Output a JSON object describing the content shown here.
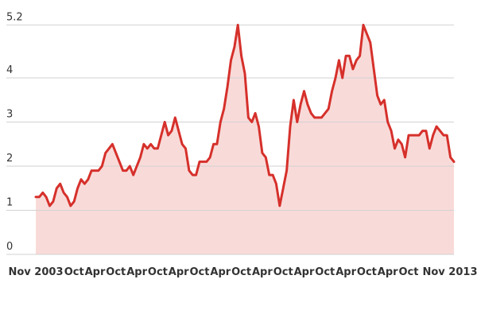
{
  "chart_data": {
    "type": "area",
    "title": "",
    "xlabel": "",
    "ylabel": "",
    "x_start": "Nov 2003",
    "x_end": "Nov 2013",
    "interval": "monthly",
    "ylim": [
      0,
      5.2
    ],
    "grid": true,
    "legend_position": "none",
    "values": [
      1.3,
      1.3,
      1.4,
      1.3,
      1.1,
      1.2,
      1.5,
      1.6,
      1.4,
      1.3,
      1.1,
      1.2,
      1.5,
      1.7,
      1.6,
      1.7,
      1.9,
      1.9,
      1.9,
      2.0,
      2.3,
      2.4,
      2.5,
      2.3,
      2.1,
      1.9,
      1.9,
      2.0,
      1.8,
      2.0,
      2.2,
      2.5,
      2.4,
      2.5,
      2.4,
      2.4,
      2.7,
      3.0,
      2.7,
      2.8,
      3.1,
      2.8,
      2.5,
      2.4,
      1.9,
      1.8,
      1.8,
      2.1,
      2.1,
      2.1,
      2.2,
      2.5,
      2.5,
      3.0,
      3.3,
      3.8,
      4.4,
      4.7,
      5.2,
      4.5,
      4.1,
      3.1,
      3.0,
      3.2,
      2.9,
      2.3,
      2.2,
      1.8,
      1.8,
      1.6,
      1.1,
      1.5,
      1.9,
      2.9,
      3.5,
      3.0,
      3.4,
      3.7,
      3.4,
      3.2,
      3.1,
      3.1,
      3.1,
      3.2,
      3.3,
      3.7,
      4.0,
      4.4,
      4.0,
      4.5,
      4.5,
      4.2,
      4.4,
      4.5,
      5.2,
      5.0,
      4.8,
      4.2,
      3.6,
      3.4,
      3.5,
      3.0,
      2.8,
      2.4,
      2.6,
      2.5,
      2.2,
      2.7,
      2.7,
      2.7,
      2.7,
      2.8,
      2.8,
      2.4,
      2.7,
      2.9,
      2.8,
      2.7,
      2.7,
      2.2,
      2.1
    ],
    "y_ticks": [
      {
        "value": 0,
        "label": "0"
      },
      {
        "value": 1,
        "label": "1"
      },
      {
        "value": 2,
        "label": "2"
      },
      {
        "value": 3,
        "label": "3"
      },
      {
        "value": 4,
        "label": "4"
      },
      {
        "value": 5.2,
        "label": "5.2"
      }
    ],
    "x_ticks": [
      {
        "month_index": 0,
        "label": "Nov 2003"
      },
      {
        "month_index": 11,
        "label": "Oct"
      },
      {
        "month_index": 17,
        "label": "Apr"
      },
      {
        "month_index": 23,
        "label": "Oct"
      },
      {
        "month_index": 29,
        "label": "Apr"
      },
      {
        "month_index": 35,
        "label": "Oct"
      },
      {
        "month_index": 41,
        "label": "Apr"
      },
      {
        "month_index": 47,
        "label": "Oct"
      },
      {
        "month_index": 53,
        "label": "Apr"
      },
      {
        "month_index": 59,
        "label": "Oct"
      },
      {
        "month_index": 65,
        "label": "Apr"
      },
      {
        "month_index": 71,
        "label": "Oct"
      },
      {
        "month_index": 77,
        "label": "Apr"
      },
      {
        "month_index": 83,
        "label": "Oct"
      },
      {
        "month_index": 89,
        "label": "Apr"
      },
      {
        "month_index": 95,
        "label": "Oct"
      },
      {
        "month_index": 101,
        "label": "Apr"
      },
      {
        "month_index": 107,
        "label": "Oct"
      },
      {
        "month_index": 120,
        "label": "Nov 2013"
      }
    ],
    "colors": {
      "line": "#d6302b",
      "fill": "#f8dbd9",
      "gridline": "#d2d2d2",
      "tick_text": "#333333",
      "background": "#ffffff"
    }
  }
}
